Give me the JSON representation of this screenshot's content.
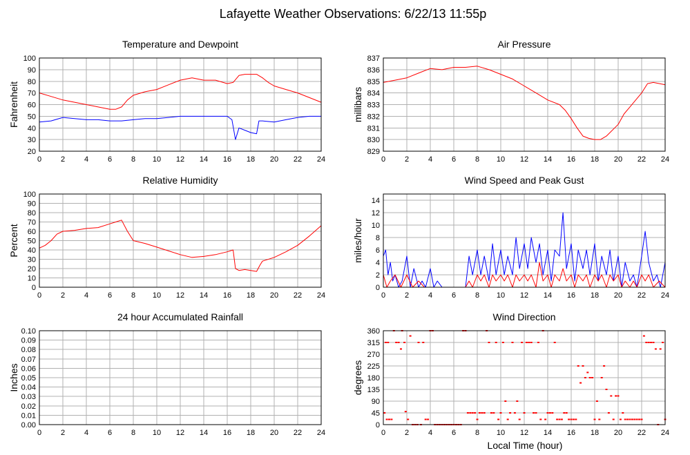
{
  "title": "Lafayette Weather Observations: 6/22/13 11:55p",
  "xlabel": "Local Time (hour)",
  "colors": {
    "red": "#ff0000",
    "blue": "#0000ff",
    "grid": "#b0b0b0"
  },
  "chart_data": [
    {
      "id": "temperature",
      "type": "line",
      "title": "Temperature and Dewpoint",
      "ylabel": "Fahrenheit",
      "xlim": [
        0,
        24
      ],
      "ylim": [
        20,
        100
      ],
      "xticks": [
        0,
        2,
        4,
        6,
        8,
        10,
        12,
        14,
        16,
        18,
        20,
        22,
        24
      ],
      "yticks": [
        20,
        30,
        40,
        50,
        60,
        70,
        80,
        90,
        100
      ],
      "ytick_decimals": 0,
      "grid": true,
      "series": [
        {
          "color": "#ff0000",
          "x": [
            0,
            1,
            2,
            3,
            4,
            5,
            6,
            6.5,
            7,
            7.5,
            8,
            9,
            10,
            11,
            12,
            13,
            14,
            15,
            16,
            16.5,
            17,
            17.5,
            18,
            18.5,
            19,
            19.5,
            20,
            21,
            22,
            23,
            24
          ],
          "y": [
            70,
            67,
            64,
            62,
            60,
            58,
            56,
            56,
            58,
            64,
            68,
            71,
            73,
            77,
            81,
            83,
            81,
            81,
            78,
            79,
            85,
            86,
            86,
            86,
            83,
            79,
            76,
            73,
            70,
            66,
            62
          ]
        },
        {
          "color": "#0000ff",
          "x": [
            0,
            1,
            2,
            3,
            4,
            5,
            6,
            7,
            8,
            9,
            10,
            11,
            12,
            13,
            14,
            15,
            16,
            16.4,
            16.7,
            17,
            17.5,
            18,
            18.5,
            18.7,
            19,
            20,
            21,
            22,
            23,
            24
          ],
          "y": [
            45,
            46,
            49,
            48,
            47,
            47,
            46,
            46,
            47,
            48,
            48,
            49,
            50,
            50,
            50,
            50,
            50,
            47,
            30,
            40,
            38,
            36,
            35,
            46,
            46,
            45,
            47,
            49,
            50,
            50
          ]
        }
      ]
    },
    {
      "id": "pressure",
      "type": "line",
      "title": "Air Pressure",
      "ylabel": "millibars",
      "xlim": [
        0,
        24
      ],
      "ylim": [
        829,
        837
      ],
      "xticks": [
        0,
        2,
        4,
        6,
        8,
        10,
        12,
        14,
        16,
        18,
        20,
        22,
        24
      ],
      "yticks": [
        829,
        830,
        831,
        832,
        833,
        834,
        835,
        836,
        837
      ],
      "ytick_decimals": 0,
      "grid": true,
      "series": [
        {
          "color": "#ff0000",
          "x": [
            0,
            1,
            2,
            3,
            4,
            5,
            6,
            7,
            8,
            9,
            10,
            11,
            12,
            13,
            14,
            15,
            15.5,
            16,
            16.5,
            17,
            17.5,
            18,
            18.5,
            19,
            20,
            20.5,
            21,
            22,
            22.5,
            23,
            24
          ],
          "y": [
            834.9,
            835.1,
            835.3,
            835.7,
            836.1,
            836.0,
            836.2,
            836.2,
            836.3,
            836.0,
            835.6,
            835.2,
            834.6,
            834.0,
            833.4,
            833.0,
            832.5,
            831.8,
            831.0,
            830.3,
            830.1,
            830.0,
            830.0,
            830.3,
            831.3,
            832.2,
            832.8,
            834.0,
            834.8,
            834.9,
            834.7
          ]
        }
      ]
    },
    {
      "id": "humidity",
      "type": "line",
      "title": "Relative Humidity",
      "ylabel": "Percent",
      "xlim": [
        0,
        24
      ],
      "ylim": [
        0,
        100
      ],
      "xticks": [
        0,
        2,
        4,
        6,
        8,
        10,
        12,
        14,
        16,
        18,
        20,
        22,
        24
      ],
      "yticks": [
        0,
        10,
        20,
        30,
        40,
        50,
        60,
        70,
        80,
        90,
        100
      ],
      "ytick_decimals": 0,
      "grid": true,
      "series": [
        {
          "color": "#ff0000",
          "x": [
            0,
            0.5,
            1,
            1.5,
            2,
            3,
            4,
            5,
            6,
            6.5,
            7,
            7.5,
            8,
            9,
            10,
            11,
            12,
            13,
            14,
            15,
            16,
            16.5,
            16.7,
            17,
            17.5,
            18,
            18.5,
            18.8,
            19,
            20,
            21,
            22,
            23,
            24
          ],
          "y": [
            42,
            45,
            50,
            57,
            60,
            61,
            63,
            64,
            68,
            70,
            72,
            60,
            50,
            47,
            43,
            39,
            35,
            32,
            33,
            35,
            38,
            40,
            20,
            18,
            19,
            18,
            17,
            24,
            28,
            32,
            38,
            45,
            55,
            66
          ]
        }
      ]
    },
    {
      "id": "wind_speed",
      "type": "line",
      "title": "Wind Speed and Peak Gust",
      "ylabel": "miles/hour",
      "xlim": [
        0,
        24
      ],
      "ylim": [
        0,
        15
      ],
      "xticks": [
        0,
        2,
        4,
        6,
        8,
        10,
        12,
        14,
        16,
        18,
        20,
        22,
        24
      ],
      "yticks": [
        0,
        2,
        4,
        6,
        8,
        10,
        12,
        14
      ],
      "ytick_decimals": 0,
      "grid": true,
      "series": [
        {
          "color": "#0000ff",
          "x": [
            0,
            0.2,
            0.4,
            0.6,
            0.8,
            1,
            1.3,
            1.6,
            2,
            2.3,
            2.6,
            3,
            3.3,
            3.6,
            4,
            4.3,
            4.6,
            5,
            6,
            7,
            7.3,
            7.6,
            8,
            8.3,
            8.6,
            9,
            9.3,
            9.6,
            10,
            10.3,
            10.6,
            11,
            11.3,
            11.6,
            12,
            12.3,
            12.6,
            13,
            13.3,
            13.6,
            14,
            14.3,
            14.6,
            15,
            15.3,
            15.6,
            16,
            16.3,
            16.6,
            17,
            17.3,
            17.6,
            18,
            18.3,
            18.6,
            19,
            19.3,
            19.6,
            20,
            20.3,
            20.6,
            21,
            21.3,
            21.6,
            22,
            22.3,
            22.6,
            23,
            23.3,
            23.6,
            24
          ],
          "y": [
            5,
            6,
            2,
            4,
            1,
            2,
            0,
            1,
            5,
            0,
            3,
            0,
            1,
            0,
            3,
            0,
            1,
            0,
            0,
            0,
            5,
            2,
            6,
            2,
            5,
            1,
            7,
            2,
            6,
            2,
            5,
            2,
            8,
            3,
            7,
            3,
            8,
            4,
            7,
            2,
            6,
            1,
            6,
            5,
            12,
            3,
            7,
            1,
            6,
            3,
            6,
            2,
            7,
            1,
            5,
            2,
            6,
            1,
            5,
            0,
            4,
            1,
            2,
            0,
            5,
            9,
            4,
            1,
            2,
            0,
            4
          ]
        },
        {
          "color": "#ff0000",
          "x": [
            0,
            0.3,
            0.6,
            1,
            1.5,
            2,
            2.5,
            3,
            3.5,
            4,
            5,
            6,
            7,
            7.3,
            7.6,
            8,
            8.3,
            8.6,
            9,
            9.3,
            9.6,
            10,
            10.3,
            10.6,
            11,
            11.3,
            11.6,
            12,
            12.3,
            12.6,
            13,
            13.3,
            13.6,
            14,
            14.3,
            14.6,
            15,
            15.3,
            15.6,
            16,
            16.3,
            16.6,
            17,
            17.3,
            17.6,
            18,
            18.3,
            18.6,
            19,
            19.3,
            19.6,
            20,
            20.3,
            20.6,
            21,
            21.3,
            21.6,
            22,
            22.3,
            22.6,
            23,
            23.5,
            24
          ],
          "y": [
            2,
            0,
            1,
            2,
            0,
            2,
            0,
            1,
            0,
            0,
            0,
            0,
            0,
            1,
            0,
            2,
            1,
            2,
            0,
            2,
            1,
            2,
            1,
            2,
            0,
            2,
            1,
            2,
            1,
            2,
            0,
            4,
            1,
            2,
            0,
            2,
            1,
            3,
            1,
            2,
            0,
            2,
            1,
            2,
            0,
            2,
            1,
            2,
            0,
            2,
            1,
            2,
            0,
            1,
            0,
            1,
            0,
            2,
            1,
            2,
            0,
            1,
            0
          ]
        }
      ]
    },
    {
      "id": "rainfall",
      "type": "line",
      "title": "24 hour Accumulated Rainfall",
      "ylabel": "Inches",
      "xlim": [
        0,
        24
      ],
      "ylim": [
        0,
        0.1
      ],
      "xticks": [
        0,
        2,
        4,
        6,
        8,
        10,
        12,
        14,
        16,
        18,
        20,
        22,
        24
      ],
      "yticks": [
        0,
        0.01,
        0.02,
        0.03,
        0.04,
        0.05,
        0.06,
        0.07,
        0.08,
        0.09,
        0.1
      ],
      "ytick_decimals": 2,
      "grid": true,
      "series": [
        {
          "color": "#ff0000",
          "x": [
            0,
            24
          ],
          "y": [
            0,
            0
          ]
        }
      ]
    },
    {
      "id": "wind_direction",
      "type": "scatter",
      "title": "Wind Direction",
      "ylabel": "degrees",
      "xlabel": "Local Time (hour)",
      "xlim": [
        0,
        24
      ],
      "ylim": [
        0,
        360
      ],
      "xticks": [
        0,
        2,
        4,
        6,
        8,
        10,
        12,
        14,
        16,
        18,
        20,
        22,
        24
      ],
      "yticks": [
        0,
        45,
        90,
        135,
        180,
        225,
        270,
        315,
        360
      ],
      "ytick_decimals": 0,
      "grid": true,
      "series": [
        {
          "color": "#ff0000",
          "x": [
            0.1,
            0.3,
            0.5,
            0.7,
            0.2,
            0.4,
            0.9,
            1.1,
            1.3,
            1.5,
            1.6,
            1.8,
            1.9,
            2.1,
            2.3,
            2.5,
            2.7,
            2.9,
            3.0,
            3.2,
            3.4,
            3.6,
            3.8,
            4.0,
            4.2,
            4.4,
            4.6,
            4.8,
            5.0,
            5.2,
            5.4,
            5.6,
            5.8,
            6.0,
            6.2,
            6.4,
            6.6,
            6.8,
            7.0,
            7.2,
            7.4,
            7.6,
            7.8,
            8.0,
            8.2,
            8.4,
            8.6,
            8.8,
            9.0,
            9.2,
            9.4,
            9.6,
            9.8,
            10.0,
            10.2,
            10.4,
            10.6,
            10.8,
            11.0,
            11.2,
            11.4,
            11.6,
            11.8,
            12.0,
            12.2,
            12.4,
            12.6,
            12.8,
            13.0,
            13.2,
            13.4,
            13.6,
            13.8,
            14.0,
            14.2,
            14.4,
            14.6,
            14.8,
            15.0,
            15.2,
            15.4,
            15.6,
            15.8,
            16.0,
            16.2,
            16.4,
            16.6,
            16.8,
            17.0,
            17.2,
            17.4,
            17.6,
            17.8,
            18.0,
            18.2,
            18.4,
            18.6,
            18.8,
            19.0,
            19.2,
            19.4,
            19.6,
            19.8,
            20.0,
            20.2,
            20.4,
            20.6,
            20.8,
            21.0,
            21.2,
            21.4,
            21.6,
            21.8,
            22.0,
            22.2,
            22.4,
            22.6,
            22.8,
            23.0,
            23.2,
            23.4,
            23.6,
            23.8,
            24.0
          ],
          "y": [
            45,
            20,
            20,
            20,
            315,
            315,
            360,
            315,
            315,
            290,
            360,
            315,
            50,
            20,
            340,
            0,
            0,
            0,
            315,
            0,
            315,
            20,
            20,
            360,
            360,
            0,
            0,
            0,
            0,
            0,
            0,
            0,
            0,
            0,
            0,
            0,
            0,
            360,
            360,
            45,
            45,
            45,
            45,
            20,
            45,
            45,
            45,
            360,
            315,
            45,
            45,
            315,
            20,
            45,
            315,
            90,
            20,
            45,
            315,
            45,
            90,
            20,
            315,
            45,
            315,
            315,
            315,
            45,
            45,
            315,
            20,
            360,
            20,
            45,
            45,
            45,
            315,
            20,
            20,
            20,
            45,
            45,
            20,
            20,
            20,
            20,
            225,
            160,
            225,
            180,
            200,
            180,
            180,
            20,
            90,
            20,
            180,
            225,
            135,
            45,
            110,
            20,
            110,
            110,
            20,
            45,
            20,
            20,
            20,
            20,
            20,
            20,
            20,
            20,
            340,
            315,
            315,
            315,
            315,
            290,
            0,
            290,
            315,
            20
          ]
        }
      ]
    }
  ]
}
